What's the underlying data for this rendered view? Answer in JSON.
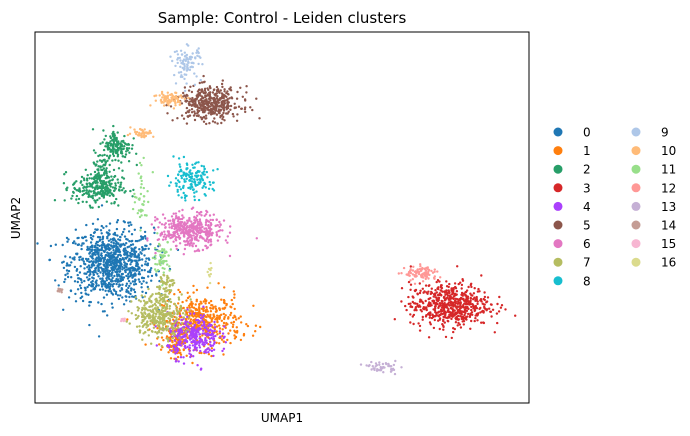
{
  "chart_data": {
    "type": "scatter",
    "title": "Sample: Control - Leiden clusters",
    "xlabel": "UMAP1",
    "ylabel": "UMAP2",
    "xticks": false,
    "yticks": false,
    "legend_position": "right",
    "legend_columns": 2,
    "series": [
      {
        "name": "0",
        "color": "#1f77b4",
        "clusters": [
          {
            "cx": -5.8,
            "cy": -1.2,
            "sx": 0.75,
            "sy": 0.75,
            "n": 900
          }
        ]
      },
      {
        "name": "1",
        "color": "#ff7f0e",
        "clusters": [
          {
            "cx": -2.6,
            "cy": -3.6,
            "sx": 0.7,
            "sy": 0.55,
            "n": 450
          },
          {
            "cx": -3.5,
            "cy": -4.3,
            "sx": 0.2,
            "sy": 0.4,
            "n": 120
          }
        ]
      },
      {
        "name": "2",
        "color": "#279e68",
        "clusters": [
          {
            "cx": -6.3,
            "cy": 2.0,
            "sx": 0.45,
            "sy": 0.35,
            "n": 260
          },
          {
            "cx": -5.6,
            "cy": 3.7,
            "sx": 0.25,
            "sy": 0.35,
            "n": 150
          },
          {
            "cx": -6.2,
            "cy": 2.9,
            "sx": 0.15,
            "sy": 0.3,
            "n": 40
          }
        ]
      },
      {
        "name": "3",
        "color": "#d62728",
        "clusters": [
          {
            "cx": 6.2,
            "cy": -2.9,
            "sx": 0.7,
            "sy": 0.45,
            "n": 600
          }
        ]
      },
      {
        "name": "4",
        "color": "#aa40fc",
        "clusters": [
          {
            "cx": -2.9,
            "cy": -4.2,
            "sx": 0.45,
            "sy": 0.45,
            "n": 300
          }
        ]
      },
      {
        "name": "5",
        "color": "#8c564b",
        "clusters": [
          {
            "cx": -2.3,
            "cy": 5.5,
            "sx": 0.55,
            "sy": 0.35,
            "n": 420
          }
        ]
      },
      {
        "name": "6",
        "color": "#e377c2",
        "clusters": [
          {
            "cx": -3.0,
            "cy": 0.2,
            "sx": 0.55,
            "sy": 0.35,
            "n": 420
          }
        ]
      },
      {
        "name": "7",
        "color": "#b5bd61",
        "clusters": [
          {
            "cx": -4.1,
            "cy": -3.3,
            "sx": 0.45,
            "sy": 0.45,
            "n": 320
          },
          {
            "cx": -3.9,
            "cy": -2.1,
            "sx": 0.15,
            "sy": 0.3,
            "n": 60
          }
        ]
      },
      {
        "name": "8",
        "color": "#17becf",
        "clusters": [
          {
            "cx": -3.0,
            "cy": 2.3,
            "sx": 0.4,
            "sy": 0.35,
            "n": 150
          }
        ]
      },
      {
        "name": "9",
        "color": "#aec7e8",
        "clusters": [
          {
            "cx": -3.1,
            "cy": 7.2,
            "sx": 0.25,
            "sy": 0.35,
            "n": 90
          }
        ]
      },
      {
        "name": "10",
        "color": "#ffbb78",
        "clusters": [
          {
            "cx": -3.7,
            "cy": 5.7,
            "sx": 0.3,
            "sy": 0.15,
            "n": 80
          },
          {
            "cx": -4.7,
            "cy": 4.3,
            "sx": 0.2,
            "sy": 0.1,
            "n": 40
          }
        ]
      },
      {
        "name": "11",
        "color": "#98df8a",
        "clusters": [
          {
            "cx": -4.0,
            "cy": -0.9,
            "sx": 0.15,
            "sy": 0.35,
            "n": 60
          },
          {
            "cx": -4.7,
            "cy": 1.6,
            "sx": 0.15,
            "sy": 0.6,
            "n": 40
          }
        ]
      },
      {
        "name": "12",
        "color": "#ff9896",
        "clusters": [
          {
            "cx": 5.2,
            "cy": -1.6,
            "sx": 0.3,
            "sy": 0.15,
            "n": 90
          }
        ]
      },
      {
        "name": "13",
        "color": "#c5b0d5",
        "clusters": [
          {
            "cx": 3.8,
            "cy": -5.5,
            "sx": 0.25,
            "sy": 0.12,
            "n": 50
          }
        ]
      },
      {
        "name": "14",
        "color": "#c49c94",
        "clusters": [
          {
            "cx": -7.6,
            "cy": -2.3,
            "sx": 0.06,
            "sy": 0.04,
            "n": 12
          }
        ]
      },
      {
        "name": "15",
        "color": "#f7b6d2",
        "clusters": [
          {
            "cx": -5.4,
            "cy": -3.5,
            "sx": 0.05,
            "sy": 0.04,
            "n": 8
          }
        ]
      },
      {
        "name": "16",
        "color": "#dbdb8d",
        "clusters": [
          {
            "cx": -2.3,
            "cy": -1.5,
            "sx": 0.05,
            "sy": 0.2,
            "n": 10
          }
        ]
      }
    ],
    "xlim": [
      -8.5,
      9.0
    ],
    "ylim": [
      -7.0,
      8.5
    ]
  }
}
